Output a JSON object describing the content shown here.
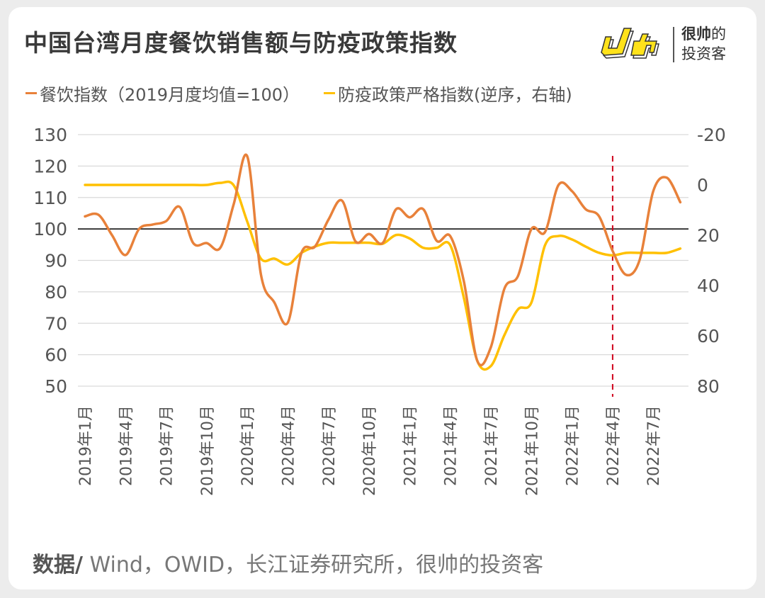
{
  "header": {
    "title": "中国台湾月度餐饮销售额与防疫政策指数",
    "logo_line1_bold": "很帅",
    "logo_line1_rest": "的",
    "logo_line2": "投资客"
  },
  "footer": {
    "label": "数据/",
    "sources": " Wind，OWID，长江证券研究所，很帅的投资客"
  },
  "chart_data": {
    "type": "line",
    "title": "中国台湾月度餐饮销售额与防疫政策指数",
    "legend_placement": "top",
    "grid": true,
    "x": [
      "2019-01",
      "2019-02",
      "2019-03",
      "2019-04",
      "2019-05",
      "2019-06",
      "2019-07",
      "2019-08",
      "2019-09",
      "2019-10",
      "2019-11",
      "2019-12",
      "2020-01",
      "2020-02",
      "2020-03",
      "2020-04",
      "2020-05",
      "2020-06",
      "2020-07",
      "2020-08",
      "2020-09",
      "2020-10",
      "2020-11",
      "2020-12",
      "2021-01",
      "2021-02",
      "2021-03",
      "2021-04",
      "2021-05",
      "2021-06",
      "2021-07",
      "2021-08",
      "2021-09",
      "2021-10",
      "2021-11",
      "2021-12",
      "2022-01",
      "2022-02",
      "2022-03",
      "2022-04",
      "2022-05",
      "2022-06",
      "2022-07",
      "2022-08",
      "2022-09"
    ],
    "x_tick_labels": [
      "2019年1月",
      "2019年4月",
      "2019年7月",
      "2019年10月",
      "2020年1月",
      "2020年4月",
      "2020年7月",
      "2020年10月",
      "2021年1月",
      "2021年4月",
      "2021年7月",
      "2021年10月",
      "2022年1月",
      "2022年4月",
      "2022年7月"
    ],
    "y_left": {
      "ylim": [
        50,
        130
      ],
      "ticks": [
        "130",
        "120",
        "110",
        "100",
        "90",
        "80",
        "70",
        "60",
        "50"
      ]
    },
    "y_right": {
      "ylim": [
        -20,
        80
      ],
      "reversed": true,
      "ticks": [
        "-20",
        "0",
        "20",
        "40",
        "60",
        "80"
      ]
    },
    "reference_line": {
      "axis": "left",
      "value": 100,
      "color": "#000000"
    },
    "vertical_marker": {
      "x": "2022-04",
      "color": "#D0021B",
      "style": "dashed"
    },
    "series": [
      {
        "name": "餐饮指数（2019月度均值=100）",
        "axis": "left",
        "color": "#E8813A",
        "values": [
          104,
          104.5,
          98,
          91.7,
          100,
          101.4,
          102.5,
          107,
          95.5,
          95.5,
          94,
          108,
          123,
          85.6,
          76.6,
          70.3,
          92.4,
          94.4,
          103,
          109,
          96,
          98.4,
          95.5,
          106.3,
          103.7,
          106.3,
          96.2,
          97.7,
          83.4,
          58,
          62.4,
          81,
          85,
          100,
          99,
          114,
          112,
          106.3,
          104,
          93,
          85.4,
          90.2,
          112,
          116.3,
          108.5
        ]
      },
      {
        "name": "防疫政策严格指数(逆序，右轴)",
        "axis": "right",
        "color": "#FFC000",
        "values": [
          0,
          0,
          0,
          0,
          0,
          0,
          0,
          0,
          0,
          0,
          -0.8,
          0.2,
          14.7,
          29.3,
          29.3,
          31.6,
          27,
          24.5,
          23,
          23,
          23,
          23,
          23.4,
          19.9,
          21.3,
          25,
          25,
          24,
          44.8,
          70,
          72,
          59.7,
          49.5,
          46.7,
          24,
          20.3,
          21.7,
          24.5,
          27,
          28,
          27,
          27,
          27,
          27,
          25.3
        ]
      }
    ]
  }
}
